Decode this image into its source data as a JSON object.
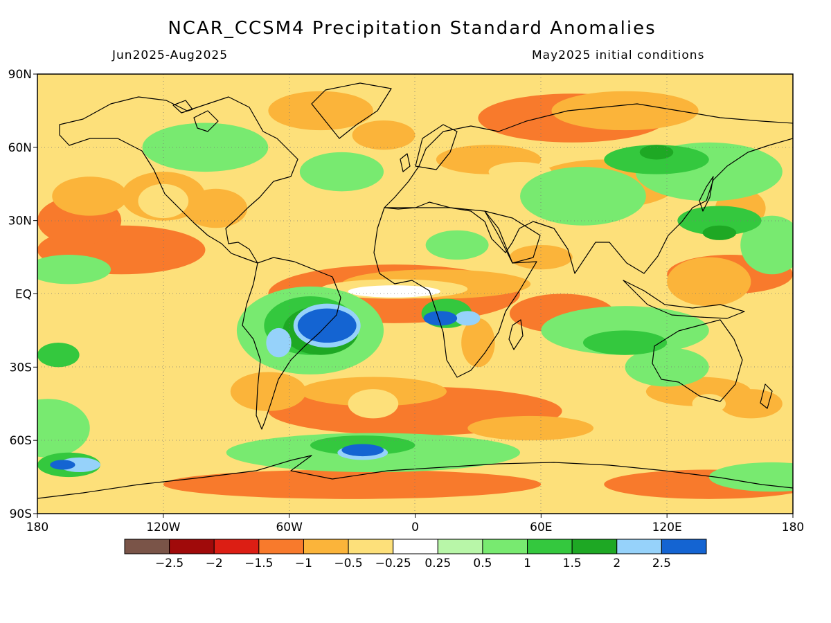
{
  "header": {
    "title": "NCAR_CCSM4 Precipitation Standard Anomalies",
    "period": "Jun2025-Aug2025",
    "init": "May2025 initial conditions"
  },
  "axes": {
    "x_ticks": [
      "180",
      "120W",
      "60W",
      "0",
      "60E",
      "120E",
      "180"
    ],
    "y_ticks": [
      "90N",
      "60N",
      "30N",
      "EQ",
      "30S",
      "60S",
      "90S"
    ]
  },
  "colorbar": {
    "colors": [
      "#7a5448",
      "#a00a0a",
      "#dc1e14",
      "#f87a2c",
      "#fbb43a",
      "#fde07a",
      "#ffffff",
      "#b8f6a8",
      "#78ea70",
      "#34c83e",
      "#1ea824",
      "#96d2fa",
      "#1464d2"
    ],
    "labels": [
      "-2.5",
      "-2",
      "-1.5",
      "-1",
      "-0.5",
      "-0.25",
      "0.25",
      "0.5",
      "1",
      "1.5",
      "2",
      "2.5"
    ]
  },
  "map": {
    "lon_range": [
      -180,
      180
    ],
    "lat_range": [
      -90,
      90
    ],
    "features": [
      {
        "v": 3,
        "lon": -10,
        "lat": 0,
        "rx": 60,
        "ry": 12
      },
      {
        "v": 3,
        "lon": -140,
        "lat": 18,
        "rx": 40,
        "ry": 10
      },
      {
        "v": 3,
        "lon": 0,
        "lat": -48,
        "rx": 70,
        "ry": 10
      },
      {
        "v": 3,
        "lon": 70,
        "lat": -8,
        "rx": 25,
        "ry": 8
      },
      {
        "v": 3,
        "lon": 150,
        "lat": 8,
        "rx": 30,
        "ry": 8
      },
      {
        "v": 3,
        "lon": 75,
        "lat": 72,
        "rx": 45,
        "ry": 10
      },
      {
        "v": 3,
        "lon": -30,
        "lat": -78,
        "rx": 90,
        "ry": 6
      },
      {
        "v": 3,
        "lon": 140,
        "lat": -78,
        "rx": 50,
        "ry": 6
      },
      {
        "v": 3,
        "lon": -160,
        "lat": 30,
        "rx": 20,
        "ry": 10
      },
      {
        "v": 4,
        "lon": -120,
        "lat": 40,
        "rx": 20,
        "ry": 10
      },
      {
        "v": 4,
        "lon": 10,
        "lat": 4,
        "rx": 45,
        "ry": 6
      },
      {
        "v": 4,
        "lon": -155,
        "lat": 40,
        "rx": 18,
        "ry": 8
      },
      {
        "v": 4,
        "lon": -20,
        "lat": -40,
        "rx": 35,
        "ry": 6
      },
      {
        "v": 4,
        "lon": 140,
        "lat": 5,
        "rx": 20,
        "ry": 10
      },
      {
        "v": 4,
        "lon": 90,
        "lat": 45,
        "rx": 35,
        "ry": 10
      },
      {
        "v": 4,
        "lon": 100,
        "lat": 75,
        "rx": 35,
        "ry": 8
      },
      {
        "v": 4,
        "lon": -45,
        "lat": 75,
        "rx": 25,
        "ry": 8
      },
      {
        "v": 4,
        "lon": 35,
        "lat": 55,
        "rx": 25,
        "ry": 6
      },
      {
        "v": 4,
        "lon": -95,
        "lat": 35,
        "rx": 15,
        "ry": 8
      },
      {
        "v": 4,
        "lon": 155,
        "lat": 35,
        "rx": 12,
        "ry": 8
      },
      {
        "v": 4,
        "lon": -70,
        "lat": -40,
        "rx": 18,
        "ry": 8
      },
      {
        "v": 4,
        "lon": 55,
        "lat": -55,
        "rx": 30,
        "ry": 5
      },
      {
        "v": 4,
        "lon": 135,
        "lat": -40,
        "rx": 25,
        "ry": 6
      },
      {
        "v": 4,
        "lon": 160,
        "lat": -45,
        "rx": 15,
        "ry": 6
      },
      {
        "v": 4,
        "lon": 60,
        "lat": 15,
        "rx": 15,
        "ry": 5
      },
      {
        "v": 4,
        "lon": -15,
        "lat": 65,
        "rx": 15,
        "ry": 6
      },
      {
        "v": 4,
        "lon": 30,
        "lat": -20,
        "rx": 8,
        "ry": 10
      },
      {
        "v": 5,
        "lon": -120,
        "lat": 38,
        "rx": 12,
        "ry": 7
      },
      {
        "v": 5,
        "lon": -10,
        "lat": 2,
        "rx": 35,
        "ry": 4
      },
      {
        "v": 5,
        "lon": 88,
        "lat": 45,
        "rx": 15,
        "ry": 6
      },
      {
        "v": 5,
        "lon": -20,
        "lat": -45,
        "rx": 12,
        "ry": 6
      },
      {
        "v": 5,
        "lon": 50,
        "lat": 50,
        "rx": 15,
        "ry": 4
      },
      {
        "v": 5,
        "lon": 140,
        "lat": -45,
        "rx": 8,
        "ry": 4
      },
      {
        "v": 6,
        "lon": -10,
        "lat": 1,
        "rx": 22,
        "ry": 2.5
      },
      {
        "v": 6,
        "lon": 90,
        "lat": 48,
        "rx": 4,
        "ry": 2
      },
      {
        "v": 8,
        "lon": 80,
        "lat": 40,
        "rx": 30,
        "ry": 12
      },
      {
        "v": 8,
        "lon": -100,
        "lat": 60,
        "rx": 30,
        "ry": 10
      },
      {
        "v": 8,
        "lon": -50,
        "lat": -15,
        "rx": 35,
        "ry": 18
      },
      {
        "v": 8,
        "lon": -20,
        "lat": -65,
        "rx": 70,
        "ry": 8
      },
      {
        "v": 8,
        "lon": 100,
        "lat": -15,
        "rx": 40,
        "ry": 10
      },
      {
        "v": 8,
        "lon": 140,
        "lat": 50,
        "rx": 35,
        "ry": 12
      },
      {
        "v": 8,
        "lon": 170,
        "lat": 20,
        "rx": 15,
        "ry": 12
      },
      {
        "v": 8,
        "lon": -175,
        "lat": -55,
        "rx": 20,
        "ry": 12
      },
      {
        "v": 8,
        "lon": -165,
        "lat": 10,
        "rx": 20,
        "ry": 6
      },
      {
        "v": 8,
        "lon": 20,
        "lat": 20,
        "rx": 15,
        "ry": 6
      },
      {
        "v": 8,
        "lon": -35,
        "lat": 50,
        "rx": 20,
        "ry": 8
      },
      {
        "v": 8,
        "lon": 120,
        "lat": -30,
        "rx": 20,
        "ry": 8
      },
      {
        "v": 8,
        "lon": 170,
        "lat": -75,
        "rx": 30,
        "ry": 6
      },
      {
        "v": 9,
        "lon": -50,
        "lat": -13,
        "rx": 22,
        "ry": 12
      },
      {
        "v": 9,
        "lon": 115,
        "lat": 55,
        "rx": 25,
        "ry": 6
      },
      {
        "v": 9,
        "lon": 145,
        "lat": 30,
        "rx": 20,
        "ry": 6
      },
      {
        "v": 9,
        "lon": 15,
        "lat": -8,
        "rx": 12,
        "ry": 6
      },
      {
        "v": 9,
        "lon": -25,
        "lat": -62,
        "rx": 25,
        "ry": 4
      },
      {
        "v": 9,
        "lon": -165,
        "lat": -70,
        "rx": 15,
        "ry": 5
      },
      {
        "v": 9,
        "lon": 100,
        "lat": -20,
        "rx": 20,
        "ry": 5
      },
      {
        "v": 9,
        "lon": -170,
        "lat": -25,
        "rx": 10,
        "ry": 5
      },
      {
        "v": 10,
        "lon": -45,
        "lat": -15,
        "rx": 18,
        "ry": 10
      },
      {
        "v": 10,
        "lon": 115,
        "lat": 58,
        "rx": 8,
        "ry": 3
      },
      {
        "v": 10,
        "lon": 145,
        "lat": 25,
        "rx": 8,
        "ry": 3
      },
      {
        "v": 11,
        "lon": -42,
        "lat": -13,
        "rx": 16,
        "ry": 9
      },
      {
        "v": 11,
        "lon": -65,
        "lat": -20,
        "rx": 6,
        "ry": 6
      },
      {
        "v": 11,
        "lon": -25,
        "lat": -65,
        "rx": 12,
        "ry": 3
      },
      {
        "v": 11,
        "lon": -160,
        "lat": -70,
        "rx": 10,
        "ry": 3
      },
      {
        "v": 11,
        "lon": 25,
        "lat": -10,
        "rx": 6,
        "ry": 3
      },
      {
        "v": 12,
        "lon": -42,
        "lat": -13,
        "rx": 14,
        "ry": 7
      },
      {
        "v": 12,
        "lon": -25,
        "lat": -64,
        "rx": 10,
        "ry": 2.5
      },
      {
        "v": 12,
        "lon": 12,
        "lat": -10,
        "rx": 8,
        "ry": 3
      },
      {
        "v": 12,
        "lon": -168,
        "lat": -70,
        "rx": 6,
        "ry": 2
      }
    ]
  }
}
